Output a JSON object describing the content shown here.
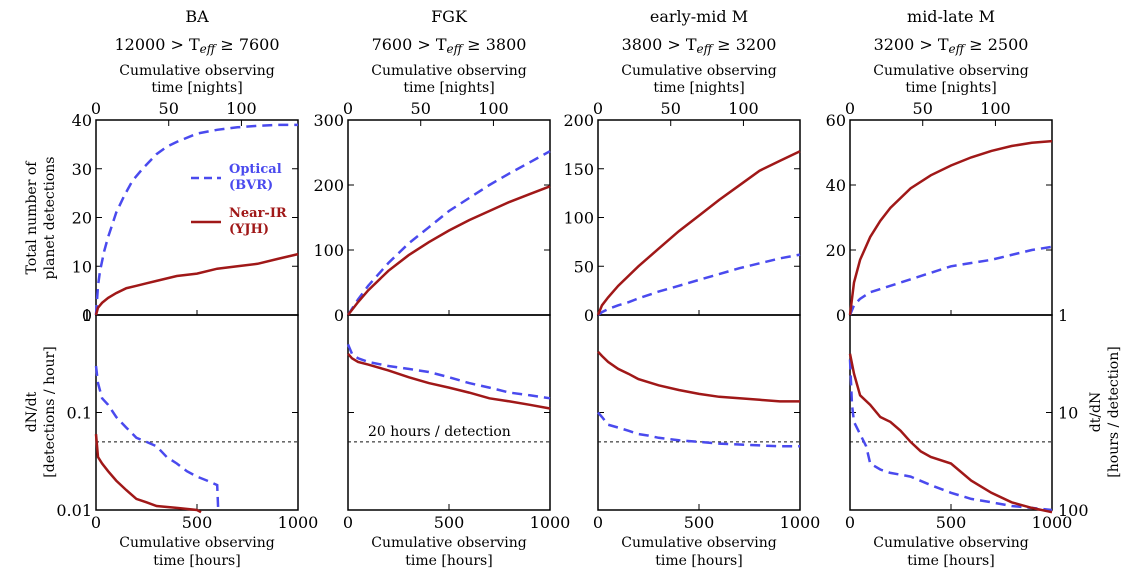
{
  "chart_data": {
    "type": "line",
    "x_label": "Cumulative observing\ntime [hours]",
    "x_top_label": "Cumulative observing\ntime [nights]",
    "x_ticks": [
      "0",
      "500",
      "1000"
    ],
    "x_top_ticks": [
      "0",
      "50",
      "100"
    ],
    "xlim": [
      0,
      1000
    ],
    "top_ylabel": "Total number of\nplanet detections",
    "bottom_ylabel_left": "dN/dt\n[detections / hour]",
    "bottom_ylabel_right": "dt/dN\n[hours / detection]",
    "bottom_yscale": "log",
    "bottom_ylim": [
      0.01,
      1.0
    ],
    "left_bottom_ticks": [
      "1",
      "0.1",
      "0.01"
    ],
    "right_bottom_ticks": [
      "1",
      "10",
      "100"
    ],
    "hline": {
      "value": 0.05,
      "label": "20 hours / detection"
    },
    "legend": [
      {
        "name": "Optical",
        "sub": "(BVR)",
        "color": "#4a4aee",
        "dash": true
      },
      {
        "name": "Near-IR",
        "sub": "(YJH)",
        "color": "#a01818",
        "dash": false
      }
    ],
    "colors": {
      "optical": "#4a4aee",
      "nearir": "#a01818"
    },
    "panels": [
      {
        "title1": "BA",
        "title2": "12000  > T_eff ≥  7600",
        "top_ylim": [
          0,
          40
        ],
        "top_yticks": [
          "0",
          "10",
          "20",
          "30",
          "40"
        ],
        "series": [
          {
            "name": "Optical",
            "x": [
              0,
              10,
              20,
              40,
              60,
              80,
              100,
              140,
              180,
              230,
              300,
              350,
              400,
              500,
              600,
              700,
              800,
              900,
              1000
            ],
            "y": [
              0,
              6,
              9,
              13,
              16,
              18.5,
              21,
              24.5,
              27.5,
              30,
              33,
              34.5,
              35.5,
              37.2,
              38,
              38.5,
              38.8,
              39,
              39
            ]
          },
          {
            "name": "Near-IR",
            "x": [
              0,
              10,
              30,
              60,
              100,
              150,
              200,
              250,
              300,
              400,
              500,
              600,
              700,
              800,
              900,
              1000
            ],
            "y": [
              0,
              1.5,
              2.5,
              3.5,
              4.5,
              5.5,
              6,
              6.5,
              7,
              8,
              8.5,
              9.5,
              10,
              10.5,
              11.5,
              12.5
            ]
          }
        ],
        "rate": [
          {
            "name": "Optical",
            "x": [
              0,
              10,
              30,
              60,
              100,
              150,
              200,
              250,
              300,
              350,
              400,
              450,
              500,
              550,
              600,
              605
            ],
            "y": [
              0.3,
              0.2,
              0.14,
              0.12,
              0.09,
              0.07,
              0.055,
              0.05,
              0.045,
              0.035,
              0.03,
              0.025,
              0.022,
              0.02,
              0.018,
              0.01
            ]
          },
          {
            "name": "Near-IR",
            "x": [
              0,
              10,
              30,
              60,
              100,
              150,
              200,
              250,
              300,
              400,
              500,
              520
            ],
            "y": [
              0.06,
              0.035,
              0.03,
              0.025,
              0.02,
              0.016,
              0.013,
              0.012,
              0.011,
              0.0105,
              0.01,
              0.0095
            ]
          }
        ]
      },
      {
        "title1": "FGK",
        "title2": "7600  > T_eff ≥  3800",
        "top_ylim": [
          0,
          300
        ],
        "top_yticks": [
          "0",
          "100",
          "200",
          "300"
        ],
        "series": [
          {
            "name": "Optical",
            "x": [
              0,
              50,
              100,
              200,
              300,
              400,
              500,
              600,
              700,
              800,
              900,
              1000
            ],
            "y": [
              0,
              24,
              45,
              80,
              110,
              135,
              160,
              180,
              200,
              218,
              235,
              252
            ]
          },
          {
            "name": "Near-IR",
            "x": [
              0,
              50,
              100,
              200,
              300,
              400,
              500,
              600,
              700,
              800,
              900,
              1000
            ],
            "y": [
              0,
              20,
              38,
              68,
              92,
              112,
              130,
              146,
              160,
              174,
              186,
              198
            ]
          }
        ],
        "rate": [
          {
            "name": "Optical",
            "x": [
              0,
              20,
              50,
              100,
              200,
              300,
              400,
              500,
              600,
              700,
              800,
              900,
              1000
            ],
            "y": [
              0.5,
              0.4,
              0.36,
              0.33,
              0.3,
              0.28,
              0.26,
              0.23,
              0.2,
              0.18,
              0.16,
              0.15,
              0.14
            ]
          },
          {
            "name": "Near-IR",
            "x": [
              0,
              20,
              50,
              100,
              200,
              300,
              400,
              500,
              600,
              700,
              800,
              900,
              1000
            ],
            "y": [
              0.4,
              0.36,
              0.33,
              0.31,
              0.27,
              0.23,
              0.2,
              0.18,
              0.16,
              0.14,
              0.13,
              0.12,
              0.11
            ]
          }
        ]
      },
      {
        "title1": "early-mid M",
        "title2": "3800  > T_eff ≥  3200",
        "top_ylim": [
          0,
          200
        ],
        "top_yticks": [
          "0",
          "50",
          "100",
          "150",
          "200"
        ],
        "series": [
          {
            "name": "Optical",
            "x": [
              0,
              20,
              50,
              100,
              150,
              200,
              300,
              400,
              500,
              600,
              700,
              800,
              900,
              1000
            ],
            "y": [
              0,
              3,
              6,
              10,
              13,
              17,
              24,
              30,
              36,
              42,
              48,
              53,
              58,
              62
            ]
          },
          {
            "name": "Near-IR",
            "x": [
              0,
              20,
              50,
              100,
              200,
              300,
              400,
              500,
              600,
              700,
              800,
              900,
              1000
            ],
            "y": [
              0,
              10,
              18,
              30,
              50,
              68,
              86,
              102,
              118,
              133,
              148,
              158,
              168
            ]
          }
        ],
        "rate": [
          {
            "name": "Optical",
            "x": [
              0,
              20,
              50,
              100,
              150,
              200,
              250,
              300,
              400,
              500,
              600,
              700,
              800,
              900,
              1000
            ],
            "y": [
              0.1,
              0.09,
              0.075,
              0.07,
              0.065,
              0.06,
              0.058,
              0.055,
              0.052,
              0.05,
              0.048,
              0.047,
              0.046,
              0.045,
              0.045
            ]
          },
          {
            "name": "Near-IR",
            "x": [
              0,
              20,
              50,
              100,
              150,
              200,
              300,
              400,
              500,
              600,
              700,
              800,
              900,
              1000
            ],
            "y": [
              0.42,
              0.38,
              0.33,
              0.28,
              0.25,
              0.22,
              0.19,
              0.17,
              0.155,
              0.145,
              0.14,
              0.135,
              0.13,
              0.13
            ]
          }
        ]
      },
      {
        "title1": "mid-late M",
        "title2": "3200  > T_eff ≥  2500",
        "top_ylim": [
          0,
          60
        ],
        "top_yticks": [
          "0",
          "20",
          "40",
          "60"
        ],
        "series": [
          {
            "name": "Optical",
            "x": [
              0,
              20,
              50,
              100,
              150,
              200,
              300,
              400,
              500,
              600,
              700,
              800,
              900,
              1000
            ],
            "y": [
              0,
              3,
              5,
              7,
              8,
              9,
              11,
              13,
              15,
              16,
              17,
              18.5,
              20,
              21
            ]
          },
          {
            "name": "Near-IR",
            "x": [
              0,
              20,
              50,
              100,
              150,
              200,
              300,
              400,
              500,
              600,
              700,
              800,
              900,
              1000
            ],
            "y": [
              0,
              10,
              17,
              24,
              29,
              33,
              39,
              43,
              46,
              48.5,
              50.5,
              52,
              53,
              53.5
            ]
          }
        ],
        "rate": [
          {
            "name": "Optical",
            "x": [
              0,
              10,
              20,
              50,
              80,
              100,
              150,
              200,
              250,
              300,
              400,
              500,
              600,
              700,
              800,
              900,
              1000
            ],
            "y": [
              0.35,
              0.12,
              0.08,
              0.06,
              0.045,
              0.03,
              0.026,
              0.024,
              0.023,
              0.022,
              0.018,
              0.015,
              0.013,
              0.012,
              0.011,
              0.0105,
              0.01
            ]
          },
          {
            "name": "Near-IR",
            "x": [
              0,
              20,
              50,
              100,
              150,
              200,
              250,
              300,
              350,
              400,
              500,
              600,
              700,
              800,
              900,
              1000
            ],
            "y": [
              0.4,
              0.25,
              0.15,
              0.12,
              0.09,
              0.08,
              0.065,
              0.05,
              0.04,
              0.035,
              0.03,
              0.02,
              0.015,
              0.012,
              0.0105,
              0.0095
            ]
          }
        ]
      }
    ]
  }
}
